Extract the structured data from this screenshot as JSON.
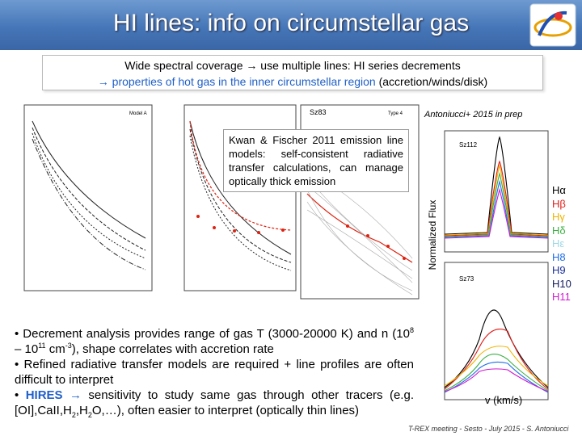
{
  "header": {
    "title": "HI lines: info on circumstellar gas"
  },
  "summary_box": {
    "line1": "Wide spectral coverage → use multiple lines: HI series decrements",
    "line2_highlight": "→ properties of hot gas in the inner circumstellar region",
    "line2_rest": "(accretion/winds/disk)"
  },
  "left_figure": {
    "caption": "Antoniucci+ 2015 in prep",
    "panel_labels": [
      "Sz83",
      "Type 4",
      "Model A"
    ]
  },
  "callout": {
    "text": "Kwan & Fischer 2011 emission line models: self-consistent radiative transfer calculations, can manage optically thick emission"
  },
  "right_figure": {
    "y_label": "Normalized Flux",
    "x_label": "v (km/s)",
    "panel_labels": [
      "Sz112",
      "Sz73"
    ]
  },
  "legend": [
    {
      "label": "Hα",
      "color": "#000000"
    },
    {
      "label": "Hβ",
      "color": "#e0201b"
    },
    {
      "label": "Hγ",
      "color": "#f0b400"
    },
    {
      "label": "Hδ",
      "color": "#3cb043"
    },
    {
      "label": "Hε",
      "color": "#9fd8e8"
    },
    {
      "label": "H8",
      "color": "#1e6ee8"
    },
    {
      "label": "H9",
      "color": "#1a2f9a"
    },
    {
      "label": "H10",
      "color": "#121a5c"
    },
    {
      "label": "H11",
      "color": "#d01ad0"
    }
  ],
  "bullets": [
    [
      "• Decrement analysis provides range of gas T (3000-20000 K) and n (10",
      {
        "sup": "8"
      },
      " – 10",
      {
        "sup": "11"
      },
      " cm",
      {
        "sup": "-3"
      },
      "), shape correlates with accretion rate"
    ],
    [
      "• Refined radiative transfer models are required + line profiles are often difficult to interpret"
    ],
    [
      "• ",
      {
        "hl": "HIRES → "
      },
      "sensitivity to study same gas through other tracers (e.g. [OI],CaII,H",
      {
        "sub": "2"
      },
      ",H",
      {
        "sub": "2"
      },
      "O,…), often easier to interpret (optically thin lines)"
    ]
  ],
  "footer": "T-REX meeting - Sesto - July 2015 - S. Antoniucci"
}
